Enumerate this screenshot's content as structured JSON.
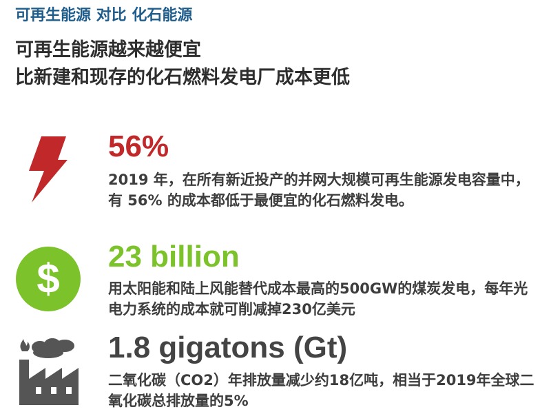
{
  "header": {
    "title": "可再生能源 对比 化石能源",
    "subtitle_line1": "可再生能源越来越便宜",
    "subtitle_line2": "比新建和现存的化石燃料发电厂成本更低"
  },
  "stats": [
    {
      "value": "56%",
      "text": "2019 年，在所有新近投产的并网大规模可再生能源发电容量中，有 56% 的成本都低于最便宜的化石燃料发电。",
      "icon": "lightning-bolt-icon",
      "color": "#c0282a"
    },
    {
      "value": "23 billion",
      "text": "用太阳能和陆上风能替代成本最高的500GW的煤炭发电，每年光电力系统的成本就可削减掉230亿美元",
      "icon": "dollar-circle-icon",
      "color": "#7cc22a"
    },
    {
      "value": "1.8 gigatons (Gt)",
      "text": "二氧化碳（CO2）年排放量减少约18亿吨，相当于2019年全球二氧化碳总排放量的5%",
      "icon": "factory-icon",
      "color": "#444444"
    }
  ]
}
